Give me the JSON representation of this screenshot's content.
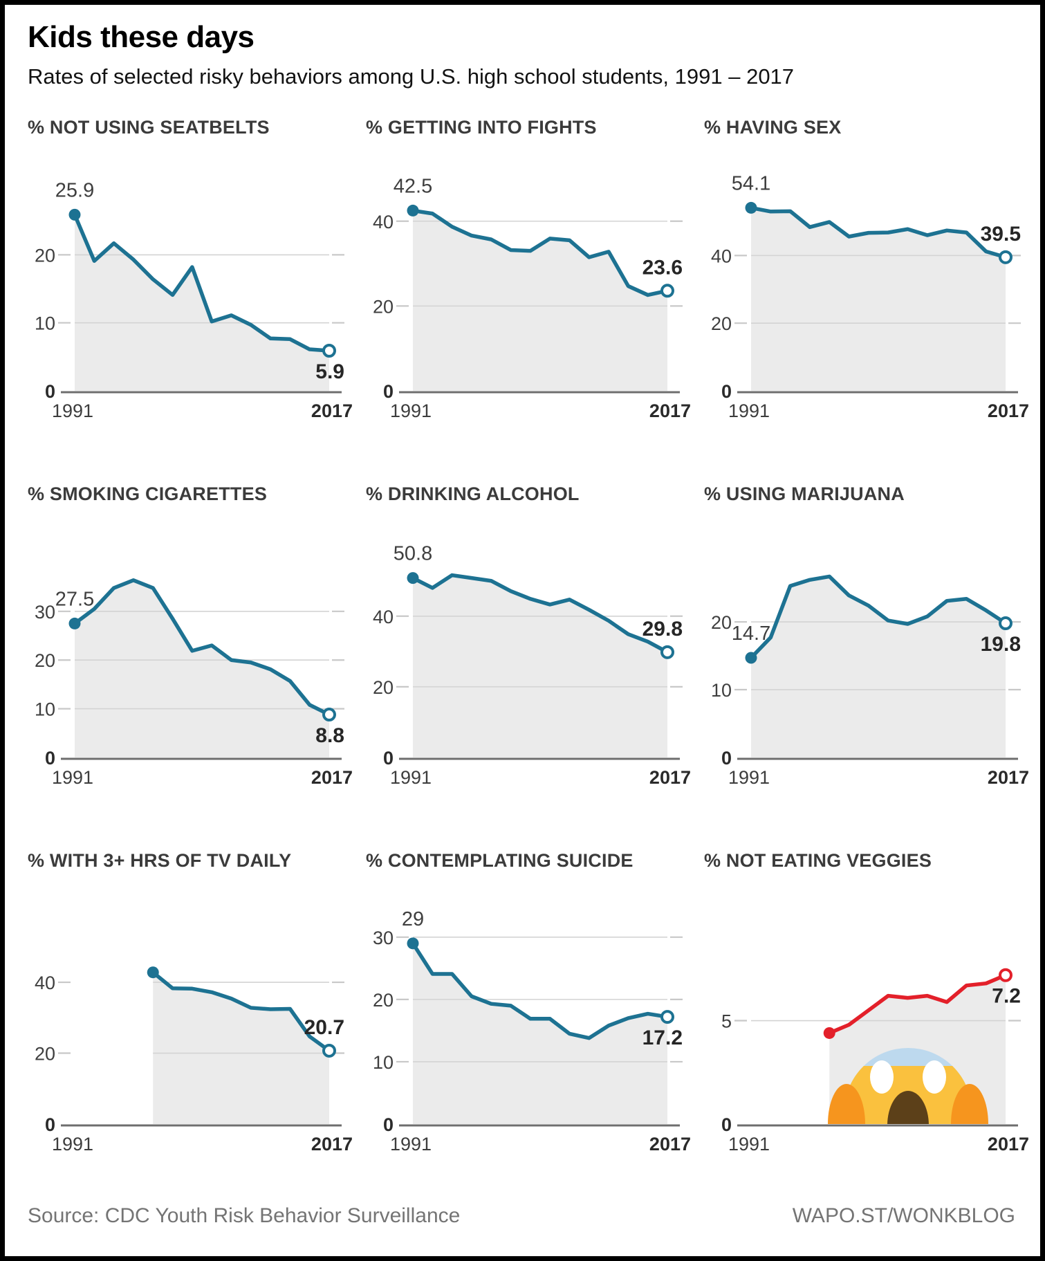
{
  "header": {
    "title": "Kids these days",
    "subtitle": "Rates of selected risky behaviors among U.S. high school students, 1991 – 2017"
  },
  "axis": {
    "start_year": "1991",
    "end_year": "2017",
    "zero_label": "0"
  },
  "colors": {
    "teal": "#1d7292",
    "red": "#e3202a",
    "area_fill": "#ebebeb",
    "gridline": "#d3d3d3",
    "tick_dash": "#c8c8c8",
    "axis_line": "#6e6e6e",
    "tick_text": "#3f3f3f",
    "value_text": "#3f3f3f",
    "end_value_text": "#262626"
  },
  "chart_data": [
    {
      "id": "not-using-seatbelts",
      "title": "% NOT USING SEATBELTS",
      "type": "area",
      "color": "#1d7292",
      "years": [
        1991,
        1993,
        1995,
        1997,
        1999,
        2001,
        2003,
        2005,
        2007,
        2009,
        2011,
        2013,
        2015,
        2017
      ],
      "values": [
        25.9,
        19.1,
        21.7,
        19.3,
        16.4,
        14.1,
        18.2,
        10.2,
        11.1,
        9.7,
        7.7,
        7.6,
        6.1,
        5.9
      ],
      "ymax": 29.5,
      "yticks": [
        10,
        20
      ],
      "start_label": "25.9",
      "end_label": "5.9",
      "end_label_pos": "below"
    },
    {
      "id": "getting-into-fights",
      "title": "% GETTING INTO FIGHTS",
      "type": "area",
      "color": "#1d7292",
      "years": [
        1991,
        1993,
        1995,
        1997,
        1999,
        2001,
        2003,
        2005,
        2007,
        2009,
        2011,
        2013,
        2015,
        2017
      ],
      "values": [
        42.5,
        41.8,
        38.7,
        36.6,
        35.7,
        33.2,
        33.0,
        35.9,
        35.5,
        31.5,
        32.8,
        24.7,
        22.6,
        23.6
      ],
      "ymax": 47.3,
      "yticks": [
        20,
        40
      ],
      "start_label": "42.5",
      "end_label": "23.6",
      "end_label_pos": "above"
    },
    {
      "id": "having-sex",
      "title": "% HAVING SEX",
      "type": "area",
      "color": "#1d7292",
      "years": [
        1991,
        1993,
        1995,
        1997,
        1999,
        2001,
        2003,
        2005,
        2007,
        2009,
        2011,
        2013,
        2015,
        2017
      ],
      "values": [
        54.1,
        53.0,
        53.1,
        48.4,
        49.9,
        45.6,
        46.7,
        46.8,
        47.8,
        46.0,
        47.4,
        46.8,
        41.2,
        39.5
      ],
      "ymax": 59.3,
      "yticks": [
        20,
        40
      ],
      "start_label": "54.1",
      "end_label": "39.5",
      "end_label_pos": "above"
    },
    {
      "id": "smoking-cigarettes",
      "title": "% SMOKING CIGARETTES",
      "type": "area",
      "color": "#1d7292",
      "years": [
        1991,
        1993,
        1995,
        1997,
        1999,
        2001,
        2003,
        2005,
        2007,
        2009,
        2011,
        2013,
        2015,
        2017
      ],
      "values": [
        27.5,
        30.5,
        34.8,
        36.4,
        34.8,
        28.5,
        21.9,
        23.0,
        20.0,
        19.5,
        18.1,
        15.7,
        10.8,
        8.8
      ],
      "ymax": 41.2,
      "yticks": [
        10,
        20,
        30
      ],
      "start_label": "27.5",
      "end_label": "8.8",
      "end_label_pos": "below"
    },
    {
      "id": "drinking-alcohol",
      "title": "% DRINKING ALCOHOL",
      "type": "area",
      "color": "#1d7292",
      "years": [
        1991,
        1993,
        1995,
        1997,
        1999,
        2001,
        2003,
        2005,
        2007,
        2009,
        2011,
        2013,
        2015,
        2017
      ],
      "values": [
        50.8,
        48.0,
        51.6,
        50.8,
        50.0,
        47.1,
        44.9,
        43.3,
        44.7,
        41.8,
        38.7,
        34.9,
        32.8,
        29.8
      ],
      "ymax": 56.8,
      "yticks": [
        20,
        40
      ],
      "start_label": "50.8",
      "end_label": "29.8",
      "end_label_pos": "above"
    },
    {
      "id": "using-marijuana",
      "title": "% USING MARIJUANA",
      "type": "area",
      "color": "#1d7292",
      "years": [
        1991,
        1993,
        1995,
        1997,
        1999,
        2001,
        2003,
        2005,
        2007,
        2009,
        2011,
        2013,
        2015,
        2017
      ],
      "values": [
        14.7,
        17.7,
        25.3,
        26.2,
        26.7,
        23.9,
        22.4,
        20.2,
        19.7,
        20.8,
        23.1,
        23.4,
        21.7,
        19.8
      ],
      "ymax": 29.6,
      "yticks": [
        10,
        20
      ],
      "start_label": "14.7",
      "end_label": "19.8",
      "end_label_pos": "below"
    },
    {
      "id": "tv-3plus-hours",
      "title": "% WITH 3+ HRS OF TV DAILY",
      "type": "area",
      "color": "#1d7292",
      "years": [
        1999,
        2001,
        2003,
        2005,
        2007,
        2009,
        2011,
        2013,
        2015,
        2017
      ],
      "values": [
        42.8,
        38.3,
        38.2,
        37.2,
        35.4,
        32.8,
        32.4,
        32.5,
        24.7,
        20.7
      ],
      "ymax": 56.6,
      "yticks": [
        20,
        40
      ],
      "grid_from_start": true,
      "start_label": null,
      "end_label": "20.7",
      "end_label_pos": "above"
    },
    {
      "id": "contemplating-suicide",
      "title": "% CONTEMPLATING SUICIDE",
      "type": "area",
      "color": "#1d7292",
      "years": [
        1991,
        1993,
        1995,
        1997,
        1999,
        2001,
        2003,
        2005,
        2007,
        2009,
        2011,
        2013,
        2015,
        2017
      ],
      "values": [
        29.0,
        24.1,
        24.1,
        20.5,
        19.3,
        19.0,
        16.9,
        16.9,
        14.5,
        13.8,
        15.8,
        17.0,
        17.7,
        17.2
      ],
      "ymax": 32.2,
      "yticks": [
        10,
        20,
        30
      ],
      "start_label": "29",
      "end_label": "17.2",
      "end_label_pos": "below"
    },
    {
      "id": "not-eating-veggies",
      "title": "% NOT EATING VEGGIES",
      "type": "area",
      "color": "#e3202a",
      "years": [
        1999,
        2001,
        2003,
        2005,
        2007,
        2009,
        2011,
        2013,
        2015,
        2017
      ],
      "values": [
        4.4,
        4.8,
        5.5,
        6.2,
        6.1,
        6.2,
        5.9,
        6.7,
        6.8,
        7.2
      ],
      "ymax": 9.7,
      "yticks": [
        5
      ],
      "start_label": null,
      "end_label": "7.2",
      "end_label_pos": "below",
      "emoji": {
        "name": "scream-emoji",
        "face": "#fac13e",
        "cap": "#bdd9ee",
        "eyes": "#ffffff",
        "mouth": "#5c4019",
        "hands": "#f6951e"
      }
    }
  ],
  "footer": {
    "source": "Source: CDC Youth Risk Behavior Surveillance",
    "brand": "WAPO.ST/WONKBLOG"
  }
}
